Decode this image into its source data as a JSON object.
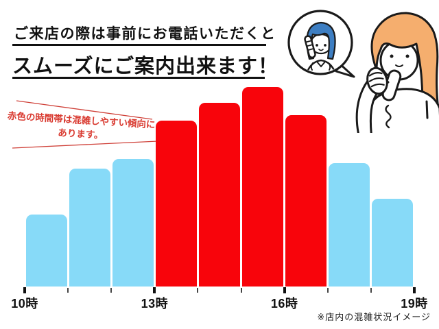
{
  "header": {
    "line1": "ご来店の際は事前にお電話いただくと",
    "line2": "スムーズにご案内出来ます！"
  },
  "annotation": {
    "line1": "赤色の時間帯は混雑しやすい傾向に",
    "line2": "あります。",
    "color": "#d93a30"
  },
  "footnote": "※店内の混雑状況イメージ",
  "colors": {
    "busy": "#f8040b",
    "calm": "#87daf8",
    "ink": "#1a1a1a",
    "staff_hair": "#3d7ec2",
    "customer_hair": "#f5ae6e"
  },
  "illustration": {
    "name": "phone-call-illustration",
    "bubble_person": "staff-on-phone",
    "main_person": "customer-on-phone"
  },
  "chart_data": {
    "type": "bar",
    "title": "店内の混雑状況イメージ",
    "categories": [
      "10-11時",
      "11-12時",
      "12-13時",
      "13-14時",
      "14-15時",
      "15-16時",
      "16-17時",
      "17-18時",
      "18-19時"
    ],
    "values": [
      36,
      59,
      64,
      83,
      92,
      100,
      86,
      62,
      44
    ],
    "bar_status": [
      "calm",
      "calm",
      "calm",
      "busy",
      "busy",
      "busy",
      "busy",
      "calm",
      "calm"
    ],
    "x_tick_labels": [
      "10時",
      "13時",
      "16時",
      "19時"
    ],
    "ylim": [
      0,
      100
    ],
    "grid": false,
    "legend": "none",
    "xlabel": "",
    "ylabel": ""
  }
}
